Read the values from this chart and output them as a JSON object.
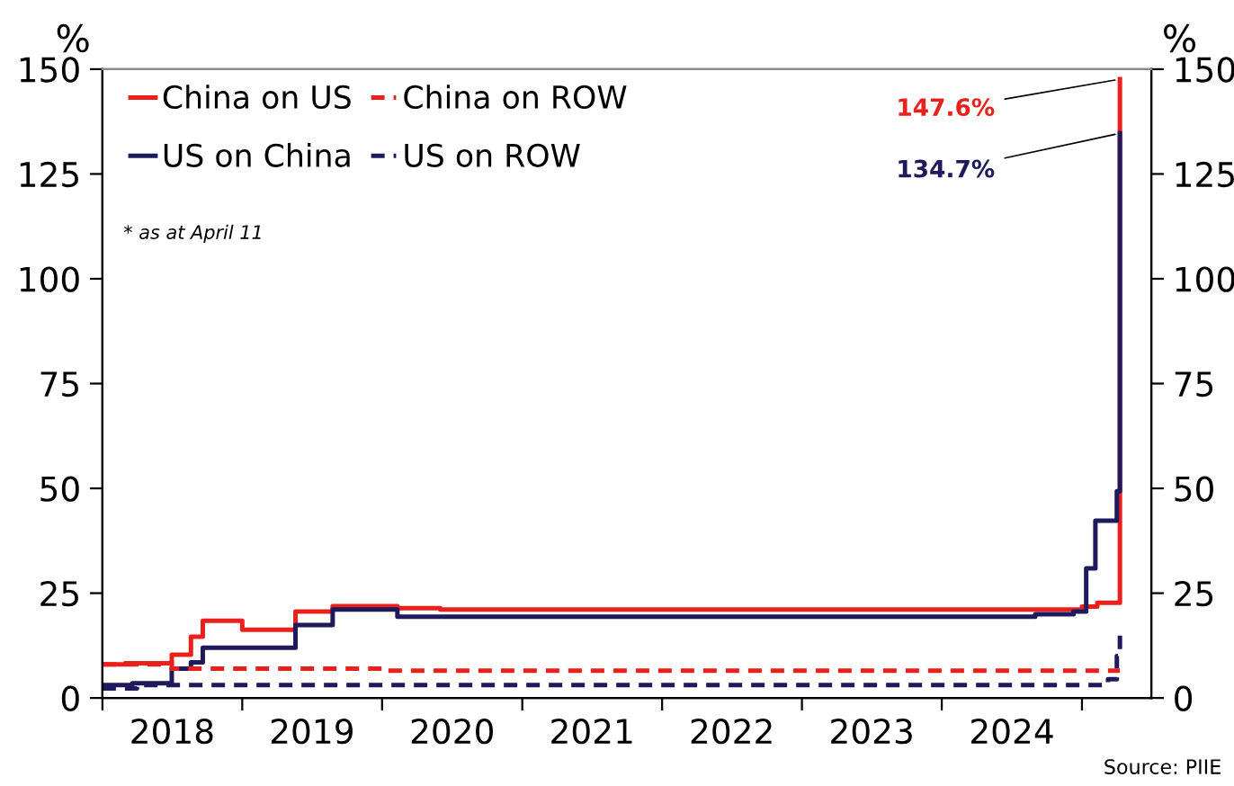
{
  "chart_data": {
    "type": "step",
    "ylabel": "%",
    "y2label": "%",
    "series": [
      {
        "name": "China on US",
        "color": "#e8211d",
        "line_style": "solid",
        "x": [
          "2018-01-01",
          "2018-03-01",
          "2018-07-01",
          "2018-08-20",
          "2018-09-20",
          "2019-01-01",
          "2019-05-20",
          "2019-08-25",
          "2020-02-10",
          "2020-06-01",
          "2025-01-01",
          "2025-02-10",
          "2025-04-10"
        ],
        "values": [
          8.0,
          8.3,
          10.3,
          14.6,
          18.4,
          16.3,
          20.6,
          21.9,
          21.4,
          21.1,
          21.8,
          22.7,
          147.6
        ]
      },
      {
        "name": "US on China",
        "color": "#1f1a5c",
        "line_style": "solid",
        "x": [
          "2018-01-01",
          "2018-03-20",
          "2018-07-01",
          "2018-08-20",
          "2018-09-20",
          "2019-05-20",
          "2019-08-25",
          "2020-02-10",
          "2024-09-01",
          "2024-12-10",
          "2025-01-12",
          "2025-02-05",
          "2025-04-02",
          "2025-04-10"
        ],
        "values": [
          3.1,
          3.5,
          7.0,
          8.5,
          12.0,
          17.4,
          21.1,
          19.4,
          20.0,
          20.6,
          30.9,
          42.3,
          49.3,
          134.7
        ]
      },
      {
        "name": "China on ROW",
        "color": "#e8211d",
        "line_style": "dashed",
        "x": [
          "2018-01-01",
          "2018-07-01",
          "2020-01-01",
          "2025-04-10"
        ],
        "values": [
          8.0,
          7.0,
          6.5,
          6.5
        ]
      },
      {
        "name": "US on ROW",
        "color": "#1f1a5c",
        "line_style": "dashed",
        "x": [
          "2018-01-01",
          "2018-04-01",
          "2025-02-20",
          "2025-03-10",
          "2025-04-02",
          "2025-04-10"
        ],
        "values": [
          2.3,
          3.1,
          3.1,
          4.5,
          10.0,
          15.6
        ]
      }
    ],
    "xlim": [
      "2018-01-01",
      "2025-07-01"
    ],
    "xticks": [
      {
        "value": "2018-01-01",
        "label": null
      },
      {
        "value": "2018-07-02",
        "label": "2018"
      },
      {
        "value": "2019-01-01",
        "label": null
      },
      {
        "value": "2019-07-02",
        "label": "2019"
      },
      {
        "value": "2020-01-01",
        "label": null
      },
      {
        "value": "2020-07-02",
        "label": "2020"
      },
      {
        "value": "2021-01-01",
        "label": null
      },
      {
        "value": "2021-07-02",
        "label": "2021"
      },
      {
        "value": "2022-01-01",
        "label": null
      },
      {
        "value": "2022-07-02",
        "label": "2022"
      },
      {
        "value": "2023-01-01",
        "label": null
      },
      {
        "value": "2023-07-02",
        "label": "2023"
      },
      {
        "value": "2024-01-01",
        "label": null
      },
      {
        "value": "2024-07-02",
        "label": "2024"
      },
      {
        "value": "2025-01-01",
        "label": null
      }
    ],
    "ylim": [
      0,
      150
    ],
    "yticks": [
      0,
      25,
      50,
      75,
      100,
      125,
      150
    ],
    "y2lim": [
      0,
      150
    ],
    "y2ticks": [
      0,
      25,
      50,
      75,
      100,
      125,
      150
    ],
    "grid": false,
    "legend": "top left",
    "annotations": [
      {
        "text": "147.6%",
        "x": "2025-04-10",
        "y": 147.6
      },
      {
        "text": "134.7%",
        "x": "2025-04-10",
        "y": 134.7
      },
      "* as at April 11",
      "Source: PIIE"
    ]
  }
}
